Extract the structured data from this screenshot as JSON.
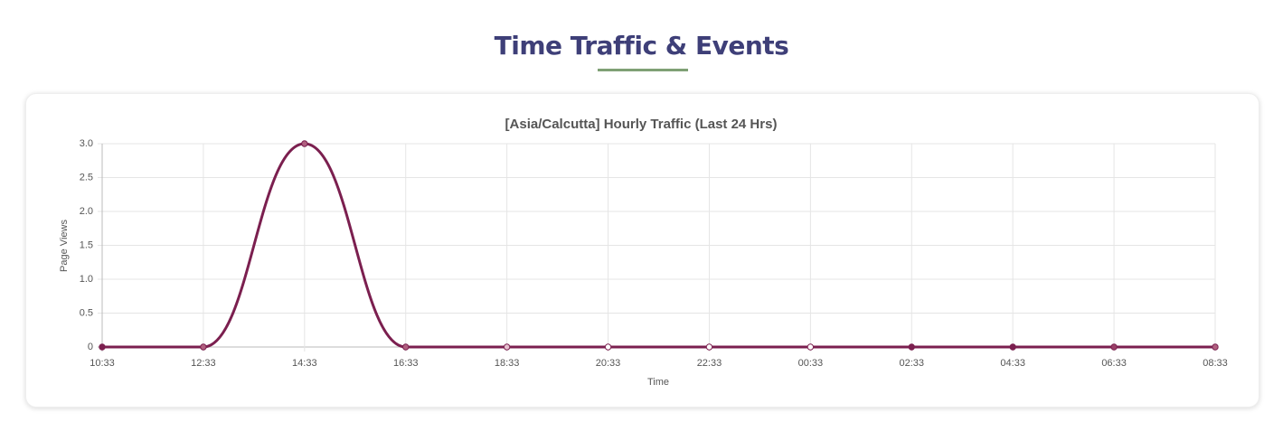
{
  "header": {
    "title": "Time Traffic & Events"
  },
  "chart_data": {
    "type": "line",
    "title": "[Asia/Calcutta] Hourly Traffic  (Last 24 Hrs)",
    "x_label": "Time",
    "y_label": "Page Views",
    "categories": [
      "10:33",
      "12:33",
      "14:33",
      "16:33",
      "18:33",
      "20:33",
      "22:33",
      "00:33",
      "02:33",
      "04:33",
      "06:33",
      "08:33"
    ],
    "series": [
      {
        "name": "Page Views",
        "color": "#7b1f4f",
        "values": [
          0,
          0,
          3,
          0,
          0,
          0,
          0,
          0,
          0,
          0,
          0,
          0
        ],
        "point_colors": [
          "#7b1f4f",
          "#b0607f",
          "#b0607f",
          "#b0607f",
          "#e6c0cf",
          "#ffffff",
          "#ffffff",
          "#ffffff",
          "#7b1f4f",
          "#7b1f4f",
          "#9a4068",
          "#b0607f"
        ]
      }
    ],
    "ylim": [
      0,
      3
    ],
    "yticks": [
      0,
      0.5,
      {
        "value": 1,
        "label": "1.0"
      },
      1.5,
      {
        "value": 2,
        "label": "2.0"
      },
      2.5,
      {
        "value": 3,
        "label": "3.0"
      }
    ],
    "grid": true,
    "smooth": true
  }
}
